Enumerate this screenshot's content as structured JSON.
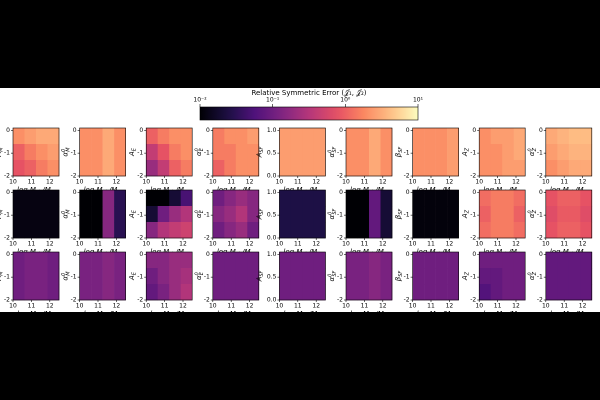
{
  "chart_data": {
    "type": "heatmap",
    "colorbar": {
      "title": "Relative Symmetric Error (𝒥₁, 𝒥₂)",
      "lim": [
        0.01,
        10
      ],
      "log": true,
      "cmap": "magma",
      "ticks": [
        {
          "value": 0.01,
          "label": "10⁻²"
        },
        {
          "value": 0.1,
          "label": "10⁻¹"
        },
        {
          "value": 1,
          "label": "10⁰"
        },
        {
          "value": 10,
          "label": "10¹"
        }
      ]
    },
    "xlabel": [
      {
        "text": "log M"
      },
      {
        "text": "vir",
        "sub": true
      },
      {
        "text": "/M"
      },
      {
        "text": "⊙",
        "sub": true
      }
    ],
    "xlim": [
      10,
      12.5
    ],
    "xticks": [
      10,
      11,
      12
    ],
    "columns": [
      {
        "ylabel": {
          "main": "A",
          "sub": "M"
        },
        "ylim": [
          -2,
          0.1
        ],
        "yticks": [
          -2,
          -1,
          0
        ]
      },
      {
        "ylabel": {
          "main": "α",
          "sub": "M",
          "sup": "0"
        },
        "ylim": [
          -2,
          0.1
        ],
        "yticks": [
          -2,
          -1,
          0
        ]
      },
      {
        "ylabel": {
          "main": "A",
          "sub": "E"
        },
        "ylim": [
          -2,
          0.1
        ],
        "yticks": [
          -2,
          -1,
          0
        ]
      },
      {
        "ylabel": {
          "main": "α",
          "sub": "E",
          "sup": "0"
        },
        "ylim": [
          -2,
          0.1
        ],
        "yticks": [
          -2,
          -1,
          0
        ]
      },
      {
        "ylabel": {
          "main": "A",
          "sub": "SF"
        },
        "ylim": [
          0,
          1.05
        ],
        "yticks": [
          {
            "value": 0,
            "label": "0.0"
          },
          {
            "value": 0.5,
            "label": "0.5"
          },
          {
            "value": 1,
            "label": "1.0"
          }
        ]
      },
      {
        "ylabel": {
          "main": "α",
          "sub": "SF",
          "sup": "0"
        },
        "ylim": [
          -2,
          0.1
        ],
        "yticks": [
          -2,
          -1,
          0
        ]
      },
      {
        "ylabel": {
          "main": "β",
          "sub": "SF"
        },
        "ylim": [
          -2,
          0.1
        ],
        "yticks": [
          -2,
          -1,
          0
        ]
      },
      {
        "ylabel": {
          "main": "A",
          "sub": "Z"
        },
        "ylim": [
          -2,
          0.1
        ],
        "yticks": [
          -2,
          -1,
          0
        ]
      },
      {
        "ylabel": {
          "main": "α",
          "sub": "Z",
          "sup": "0"
        },
        "ylim": [
          -2,
          0.1
        ],
        "yticks": [
          -2,
          -1,
          0
        ]
      }
    ],
    "z": [
      [
        [
          [
            2,
            2.5,
            3,
            3
          ],
          [
            1,
            1.5,
            2,
            2.5
          ],
          [
            0.8,
            1,
            1.5,
            2
          ]
        ],
        [
          [
            2,
            2,
            3,
            2
          ],
          [
            2,
            2,
            3,
            2
          ],
          [
            2,
            2,
            3,
            2
          ]
        ],
        [
          [
            1,
            1.5,
            2,
            2
          ],
          [
            0.4,
            0.8,
            1.5,
            2
          ],
          [
            0.2,
            0.4,
            1,
            1.5
          ]
        ],
        [
          [
            1.5,
            2,
            2,
            2.5
          ],
          [
            1.5,
            1.5,
            2,
            2
          ],
          [
            1,
            1.5,
            2,
            2
          ]
        ],
        [
          [
            2.5,
            2.5,
            2.5,
            2.5
          ],
          [
            2.5,
            2.5,
            2.5,
            2.5
          ],
          [
            2.5,
            2.5,
            2.5,
            2.5
          ]
        ],
        [
          [
            2,
            2,
            3,
            2
          ],
          [
            2,
            2,
            3,
            2
          ],
          [
            2,
            2,
            3,
            2
          ]
        ],
        [
          [
            2,
            2,
            2,
            2.5
          ],
          [
            2,
            2,
            2,
            2.5
          ],
          [
            2,
            2,
            2,
            2.5
          ]
        ],
        [
          [
            2,
            2.5,
            2.5,
            3
          ],
          [
            2,
            2,
            2.5,
            3
          ],
          [
            2,
            2,
            2.5,
            2.5
          ]
        ],
        [
          [
            3,
            3.5,
            4,
            4
          ],
          [
            2.5,
            3,
            3.5,
            3.5
          ],
          [
            2,
            2.5,
            3,
            3
          ]
        ]
      ],
      [
        [
          [
            0.012,
            0.012,
            0.012,
            0.012
          ],
          [
            0.012,
            0.012,
            0.012,
            0.012
          ],
          [
            0.012,
            0.012,
            0.012,
            0.012
          ]
        ],
        [
          [
            0.01,
            0.01,
            0.15,
            0.03
          ],
          [
            0.01,
            0.01,
            0.15,
            0.03
          ],
          [
            0.01,
            0.01,
            0.15,
            0.03
          ]
        ],
        [
          [
            0.01,
            0.01,
            0.02,
            0.05
          ],
          [
            0.02,
            0.1,
            0.2,
            0.3
          ],
          [
            0.15,
            0.3,
            0.4,
            0.5
          ]
        ],
        [
          [
            0.1,
            0.15,
            0.2,
            0.15
          ],
          [
            0.15,
            0.2,
            0.3,
            0.15
          ],
          [
            0.1,
            0.15,
            0.2,
            0.1
          ]
        ],
        [
          [
            0.025,
            0.025,
            0.025,
            0.025
          ],
          [
            0.025,
            0.025,
            0.025,
            0.025
          ],
          [
            0.025,
            0.025,
            0.025,
            0.025
          ]
        ],
        [
          [
            0.01,
            0.01,
            0.08,
            0.02
          ],
          [
            0.01,
            0.01,
            0.08,
            0.02
          ],
          [
            0.01,
            0.01,
            0.08,
            0.02
          ]
        ],
        [
          [
            0.011,
            0.011,
            0.011,
            0.011
          ],
          [
            0.011,
            0.011,
            0.011,
            0.011
          ],
          [
            0.011,
            0.011,
            0.011,
            0.011
          ]
        ],
        [
          [
            1.2,
            1.5,
            1.5,
            1.2
          ],
          [
            1,
            1.5,
            1.5,
            1
          ],
          [
            1.2,
            1.5,
            1.5,
            1.2
          ]
        ],
        [
          [
            0.8,
            1,
            1,
            0.8
          ],
          [
            0.7,
            0.9,
            0.9,
            0.7
          ],
          [
            0.8,
            1,
            1,
            0.8
          ]
        ]
      ],
      [
        [
          [
            0.1,
            0.12,
            0.12,
            0.1
          ],
          [
            0.1,
            0.12,
            0.12,
            0.1
          ],
          [
            0.1,
            0.12,
            0.12,
            0.1
          ]
        ],
        [
          [
            0.12,
            0.12,
            0.15,
            0.12
          ],
          [
            0.12,
            0.12,
            0.15,
            0.12
          ],
          [
            0.12,
            0.12,
            0.15,
            0.12
          ]
        ],
        [
          [
            0.15,
            0.15,
            0.2,
            0.2
          ],
          [
            0.1,
            0.15,
            0.2,
            0.25
          ],
          [
            0.08,
            0.12,
            0.2,
            0.3
          ]
        ],
        [
          [
            0.1,
            0.1,
            0.1,
            0.1
          ],
          [
            0.1,
            0.1,
            0.1,
            0.1
          ],
          [
            0.1,
            0.1,
            0.1,
            0.1
          ]
        ],
        [
          [
            0.1,
            0.1,
            0.1,
            0.1
          ],
          [
            0.1,
            0.1,
            0.1,
            0.1
          ],
          [
            0.1,
            0.1,
            0.1,
            0.1
          ]
        ],
        [
          [
            0.12,
            0.12,
            0.15,
            0.12
          ],
          [
            0.12,
            0.12,
            0.15,
            0.12
          ],
          [
            0.12,
            0.12,
            0.15,
            0.12
          ]
        ],
        [
          [
            0.1,
            0.1,
            0.1,
            0.1
          ],
          [
            0.1,
            0.1,
            0.1,
            0.1
          ],
          [
            0.1,
            0.1,
            0.1,
            0.1
          ]
        ],
        [
          [
            0.1,
            0.1,
            0.1,
            0.1
          ],
          [
            0.08,
            0.08,
            0.1,
            0.1
          ],
          [
            0.06,
            0.08,
            0.1,
            0.1
          ]
        ],
        [
          [
            0.08,
            0.08,
            0.08,
            0.08
          ],
          [
            0.08,
            0.08,
            0.08,
            0.08
          ],
          [
            0.08,
            0.08,
            0.08,
            0.08
          ]
        ]
      ]
    ]
  }
}
